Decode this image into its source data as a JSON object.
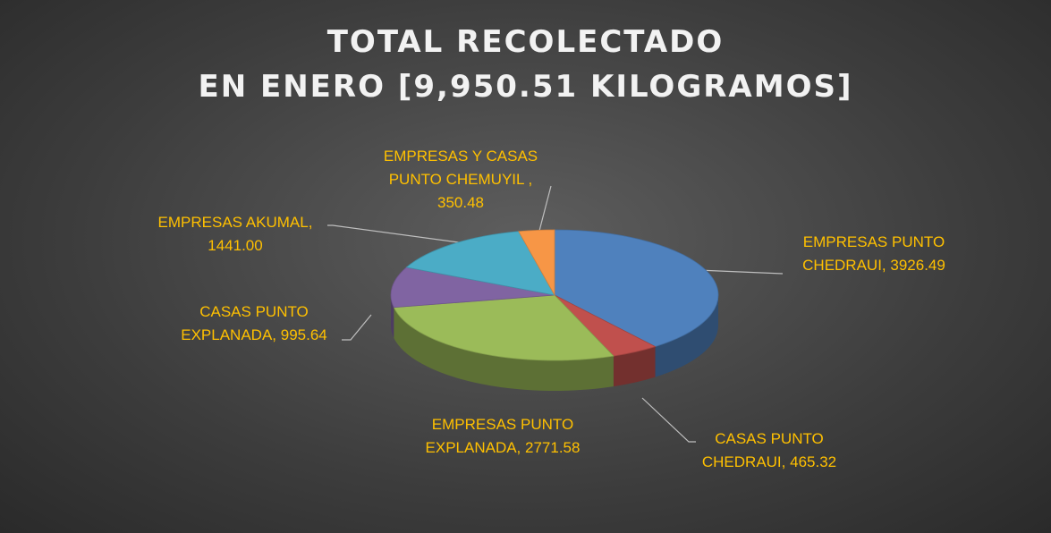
{
  "chart_data": {
    "type": "pie3d",
    "title": "TOTAL RECOLECTADO\nEN ENERO [9,950.51 KILOGRAMOS]",
    "categories": [
      "EMPRESAS PUNTO CHEDRAUI,",
      "CASAS PUNTO CHEDRAUI,",
      "EMPRESAS PUNTO EXPLANADA,",
      "CASAS PUNTO EXPLANADA,",
      "EMPRESAS AKUMAL,",
      "EMPRESAS Y CASAS PUNTO CHEMUYIL ,"
    ],
    "values": [
      3926.49,
      465.32,
      2771.58,
      995.64,
      1441,
      350.48
    ],
    "value_labels": [
      "3926.49",
      "465.32",
      "2771.58",
      "995.64",
      "1441.00",
      "350.48"
    ],
    "colors": [
      "#4f81bd",
      "#c0504d",
      "#9bbb59",
      "#8064a2",
      "#4bacc6",
      "#f79646"
    ]
  }
}
